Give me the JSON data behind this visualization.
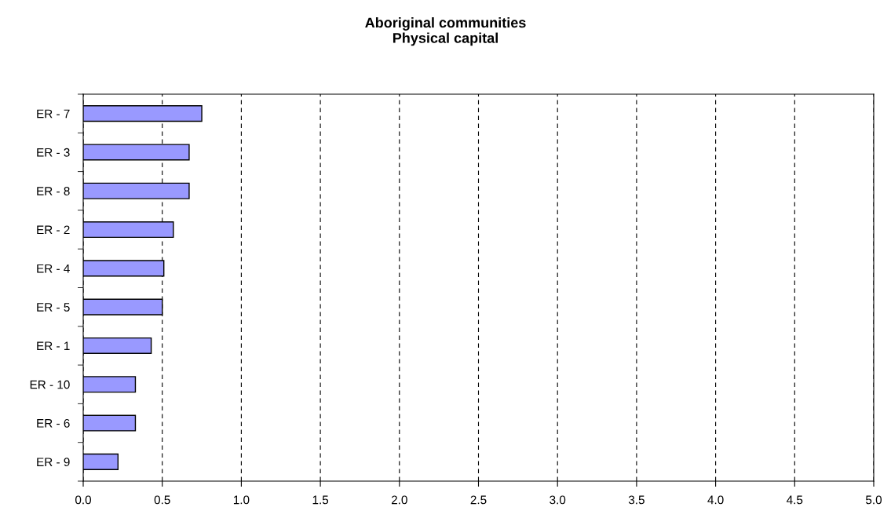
{
  "chart_data": {
    "type": "bar",
    "orientation": "horizontal",
    "title": "Aboriginal communities\nPhysical capital",
    "categories": [
      "ER - 7",
      "ER - 3",
      "ER - 8",
      "ER - 2",
      "ER - 4",
      "ER - 5",
      "ER - 1",
      "ER - 10",
      "ER - 6",
      "ER - 9"
    ],
    "values": [
      0.75,
      0.67,
      0.67,
      0.57,
      0.51,
      0.5,
      0.43,
      0.33,
      0.33,
      0.22
    ],
    "color": "#9999ff",
    "xlim": [
      0,
      5
    ],
    "xticks": [
      {
        "value": 0,
        "label": "0.0"
      },
      {
        "value": 0.5,
        "label": "0.5"
      },
      {
        "value": 1,
        "label": "1.0"
      },
      {
        "value": 1.5,
        "label": "1.5"
      },
      {
        "value": 2,
        "label": "2.0"
      },
      {
        "value": 2.5,
        "label": "2.5"
      },
      {
        "value": 3,
        "label": "3.0"
      },
      {
        "value": 3.5,
        "label": "3.5"
      },
      {
        "value": 4,
        "label": "4.0"
      },
      {
        "value": 4.5,
        "label": "4.5"
      },
      {
        "value": 5,
        "label": "5.0"
      }
    ],
    "grid": "x"
  }
}
